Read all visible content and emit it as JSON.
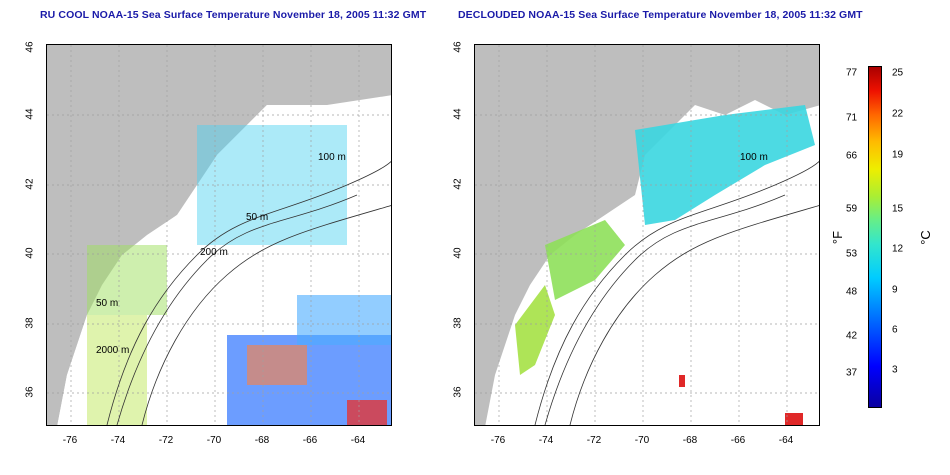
{
  "titles": {
    "left": "RU COOL NOAA-15 Sea Surface Temperature November 18, 2005 11:32 GMT",
    "right": "DECLOUDED NOAA-15 Sea Surface Temperature November 18, 2005 11:32 GMT"
  },
  "axes": {
    "x_ticks": [
      "-76",
      "-74",
      "-72",
      "-70",
      "-68",
      "-66",
      "-64"
    ],
    "y_ticks": [
      "36",
      "38",
      "40",
      "42",
      "44",
      "46"
    ],
    "x_range": [
      -77.2,
      -62.8
    ],
    "y_range": [
      35.0,
      46.0
    ]
  },
  "contour_labels": [
    "100 m",
    "100 m",
    "50 m",
    "200 m",
    "50 m",
    "2000 m"
  ],
  "colorbar": {
    "fahrenheit_label": "°F",
    "celsius_label": "°C",
    "fahrenheit_ticks": [
      "77",
      "71",
      "66",
      "59",
      "53",
      "48",
      "42",
      "37"
    ],
    "celsius_ticks": [
      "25",
      "22",
      "19",
      "15",
      "12",
      "9",
      "6",
      "3"
    ],
    "colors": {
      "land": "#bebebe",
      "cloud": "#ffffff",
      "grid": "#a0a0a0"
    }
  }
}
